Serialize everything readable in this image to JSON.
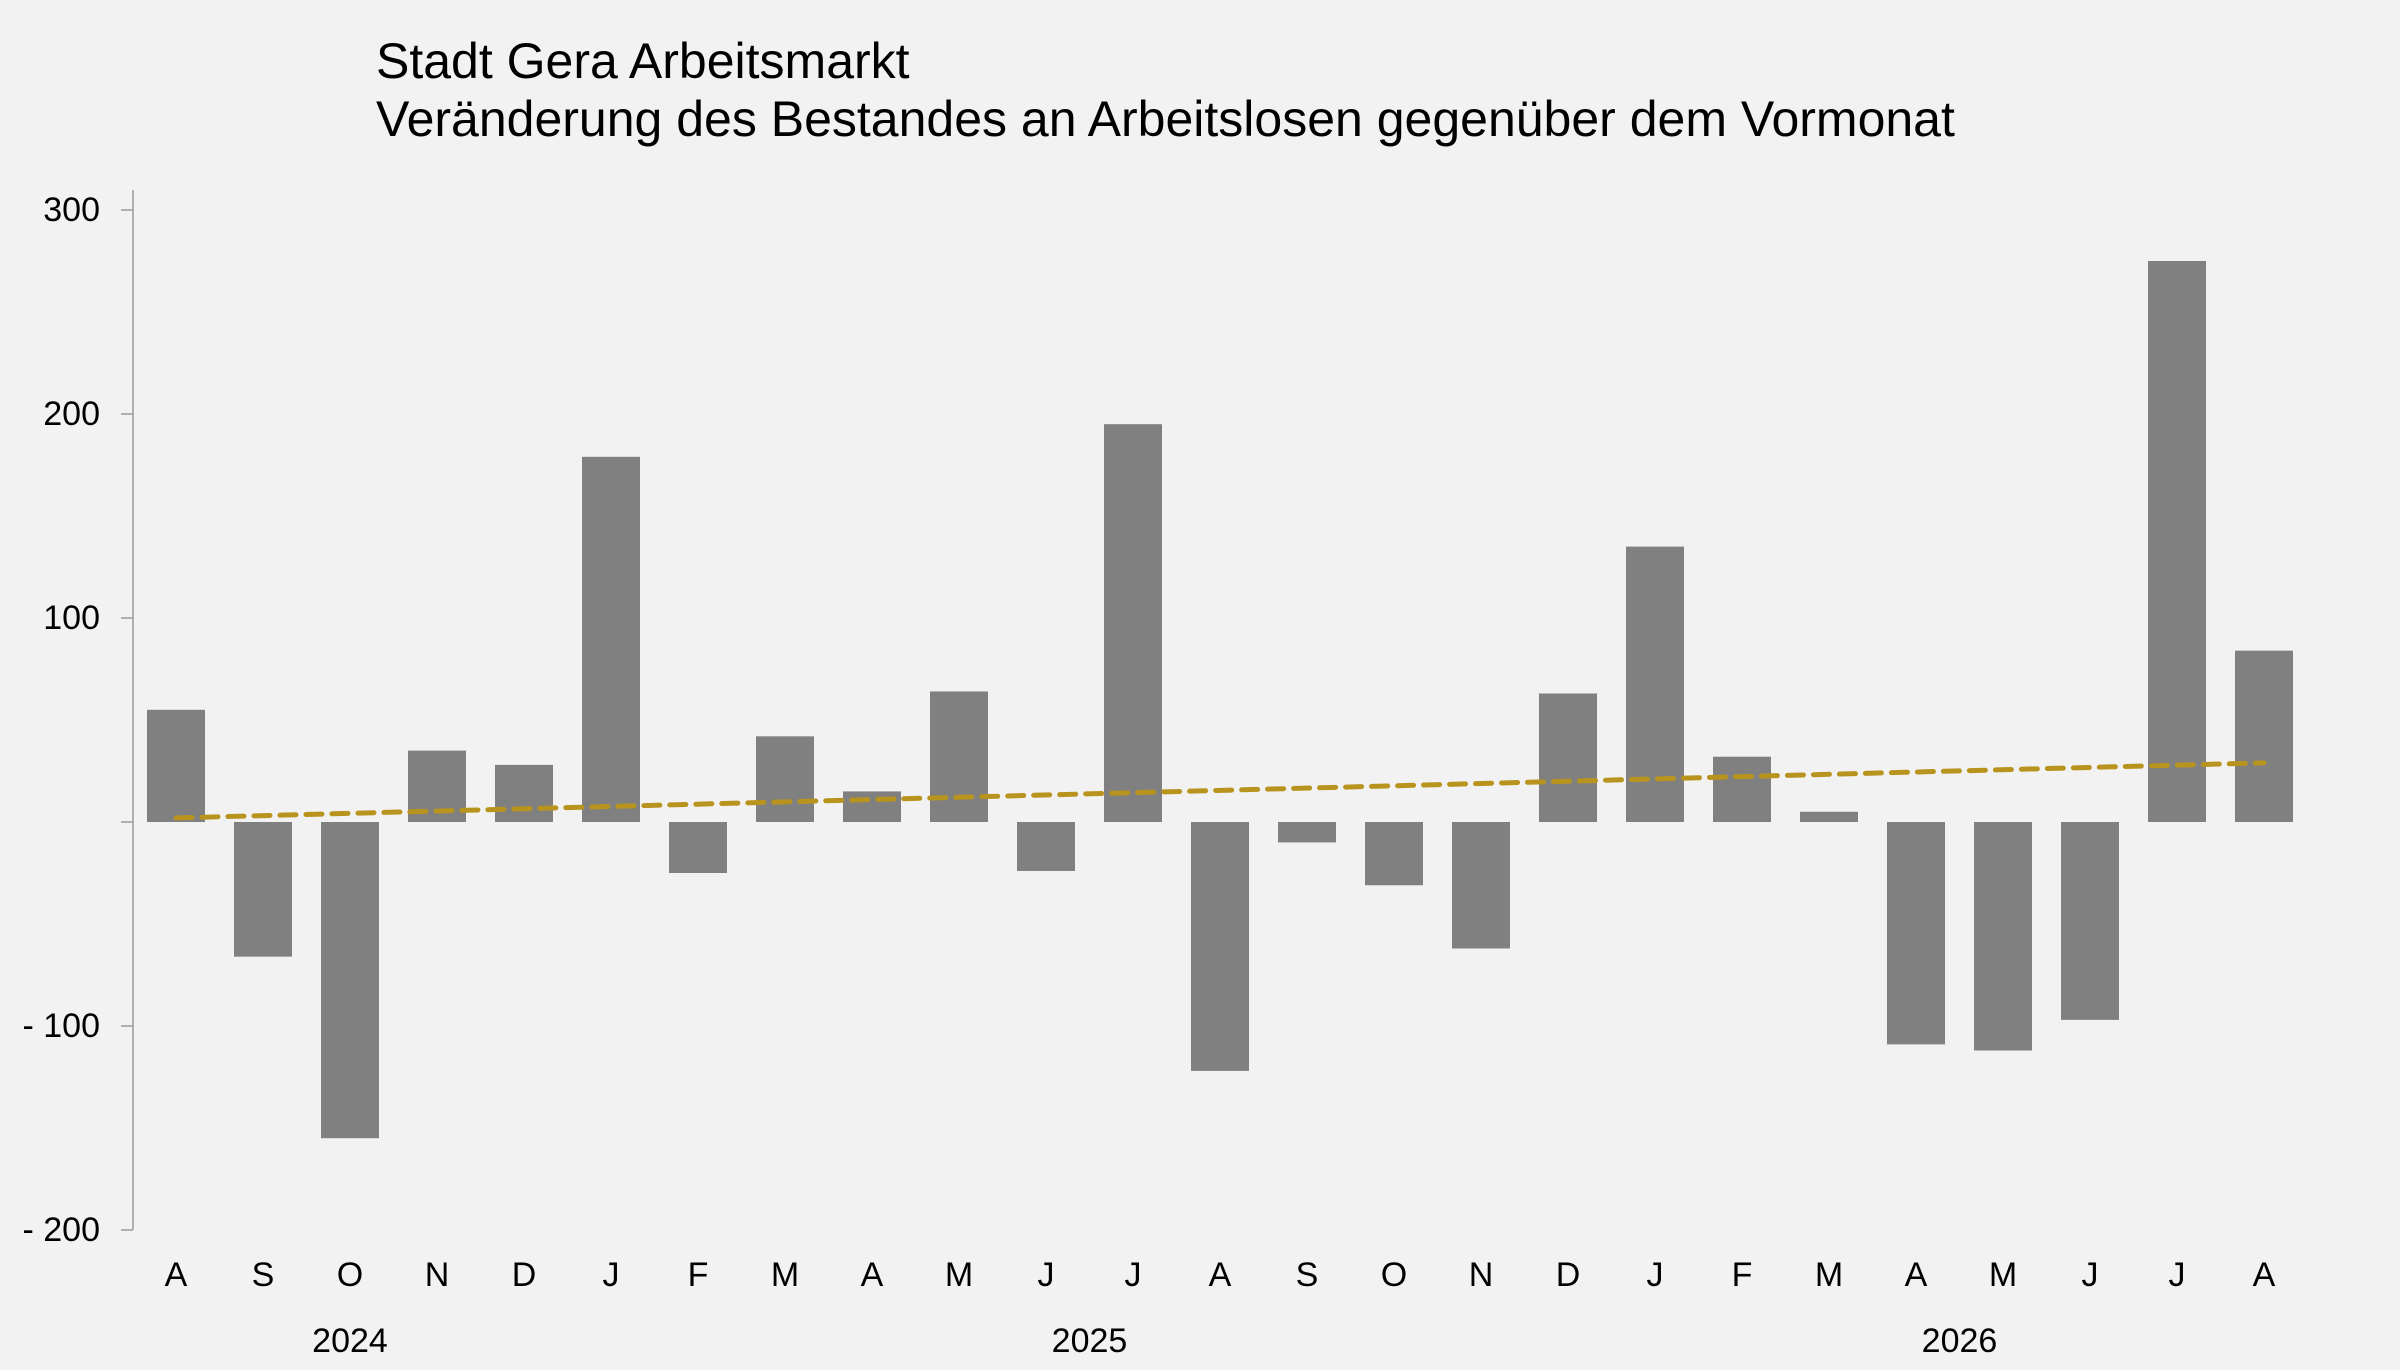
{
  "chart_data": {
    "type": "bar",
    "title": "Stadt Gera Arbeitsmarkt",
    "subtitle": "Veränderung des Bestandes an Arbeitslosen gegenüber dem Vormonat",
    "categories": [
      "A",
      "S",
      "O",
      "N",
      "D",
      "J",
      "F",
      "M",
      "A",
      "M",
      "J",
      "J",
      "A",
      "S",
      "O",
      "N",
      "D",
      "J",
      "F",
      "M",
      "A",
      "M",
      "J",
      "J",
      "A"
    ],
    "values": [
      55,
      -66,
      -155,
      35,
      28,
      179,
      -25,
      42,
      15,
      64,
      -24,
      195,
      -122,
      -10,
      -31,
      -62,
      63,
      135,
      32,
      5,
      -109,
      -112,
      -97,
      275,
      84
    ],
    "trend_line": {
      "start": 2,
      "end": 29,
      "color": "#b8941e",
      "style": "dashed"
    },
    "bar_color": "#808080",
    "year_groups": [
      {
        "label": "2024",
        "from": 0,
        "to": 4
      },
      {
        "label": "2025",
        "from": 5,
        "to": 16
      },
      {
        "label": "2026",
        "from": 17,
        "to": 24
      }
    ],
    "yticks": [
      {
        "value": 300,
        "label": "300"
      },
      {
        "value": 200,
        "label": "200"
      },
      {
        "value": 100,
        "label": "100"
      },
      {
        "value": 0,
        "label": ""
      },
      {
        "value": -100,
        "label": "-   100"
      },
      {
        "value": -200,
        "label": "-   200"
      }
    ],
    "ylim": [
      -200,
      300
    ],
    "grid": false,
    "legend": "none"
  }
}
